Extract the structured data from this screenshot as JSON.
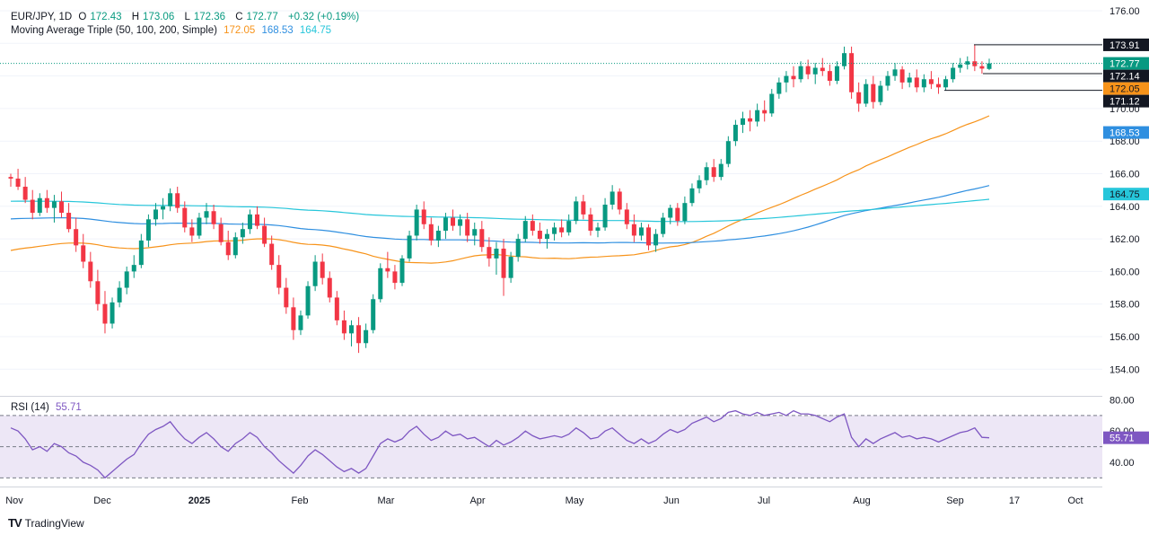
{
  "header": {
    "symbol": "EUR/JPY, 1D",
    "o_label": "O",
    "o": "172.43",
    "h_label": "H",
    "h": "173.06",
    "l_label": "L",
    "l": "172.36",
    "c_label": "C",
    "c": "172.77",
    "change": "+0.32 (+0.19%)",
    "ma_name": "Moving Average Triple (50, 100, 200, Simple)",
    "ma50": "172.05",
    "ma100": "168.53",
    "ma200": "164.75"
  },
  "rsi_header": {
    "name": "RSI (14)",
    "value": "55.71"
  },
  "brand": "TradingView",
  "colors": {
    "up": "#089981",
    "down": "#f23645",
    "ma50": "#f7931a",
    "ma100": "#2f8fe0",
    "ma200": "#26c6da",
    "rsi": "#7e57c2",
    "rsi_band": "#ede7f6",
    "last_price_tag": "#089981",
    "ma50_tag": "#f7931a",
    "ma100_tag": "#2f8fe0",
    "ma200_tag": "#26c6da",
    "level_tag": "#131722"
  },
  "chart_data": {
    "type": "candlestick",
    "x_ticks": [
      "Nov",
      "Dec",
      "2025",
      "Feb",
      "Mar",
      "Apr",
      "May",
      "Jun",
      "Jul",
      "Aug",
      "Sep",
      "17",
      "Oct"
    ],
    "price_axis": {
      "ylim": [
        153,
        176
      ],
      "ticks": [
        "176.00",
        "174.00",
        "172.00",
        "170.00",
        "168.00",
        "166.00",
        "164.00",
        "162.00",
        "160.00",
        "158.00",
        "156.00",
        "154.00"
      ]
    },
    "price_tags": [
      {
        "label": "173.91",
        "kind": "level"
      },
      {
        "label": "172.77",
        "kind": "last_price"
      },
      {
        "label": "172.14",
        "kind": "level"
      },
      {
        "label": "172.05",
        "kind": "ma50"
      },
      {
        "label": "171.12",
        "kind": "level"
      },
      {
        "label": "168.53",
        "kind": "ma100"
      },
      {
        "label": "164.75",
        "kind": "ma200"
      }
    ],
    "horizontal_levels": [
      173.91,
      172.14,
      171.12
    ],
    "last_price": 172.77,
    "candles_approx": [
      [
        165.8,
        166.0,
        165.2,
        165.7
      ],
      [
        165.7,
        166.3,
        165.0,
        165.2
      ],
      [
        165.2,
        165.8,
        164.2,
        164.4
      ],
      [
        164.4,
        165.0,
        163.2,
        163.6
      ],
      [
        163.6,
        164.8,
        163.4,
        164.5
      ],
      [
        164.5,
        165.0,
        163.6,
        163.9
      ],
      [
        163.9,
        164.7,
        163.0,
        164.3
      ],
      [
        164.3,
        164.9,
        163.3,
        163.6
      ],
      [
        163.6,
        164.2,
        162.4,
        162.6
      ],
      [
        162.6,
        163.3,
        161.2,
        161.6
      ],
      [
        161.6,
        162.3,
        160.2,
        160.6
      ],
      [
        160.6,
        161.2,
        159.0,
        159.4
      ],
      [
        159.4,
        160.1,
        157.6,
        158.0
      ],
      [
        158.0,
        158.8,
        156.2,
        156.8
      ],
      [
        156.8,
        158.4,
        156.5,
        158.1
      ],
      [
        158.1,
        159.4,
        157.8,
        159.0
      ],
      [
        159.0,
        160.3,
        158.6,
        160.0
      ],
      [
        160.0,
        161.0,
        159.6,
        160.4
      ],
      [
        160.4,
        162.3,
        160.2,
        161.9
      ],
      [
        161.9,
        163.5,
        161.5,
        163.2
      ],
      [
        163.2,
        164.2,
        162.8,
        163.8
      ],
      [
        163.8,
        164.5,
        163.2,
        164.0
      ],
      [
        164.0,
        165.1,
        163.7,
        164.8
      ],
      [
        164.8,
        165.2,
        163.6,
        163.9
      ],
      [
        163.9,
        164.3,
        162.4,
        162.7
      ],
      [
        162.7,
        163.2,
        161.8,
        162.2
      ],
      [
        162.2,
        163.6,
        162.0,
        163.3
      ],
      [
        163.3,
        164.2,
        162.9,
        163.7
      ],
      [
        163.7,
        164.1,
        162.6,
        162.9
      ],
      [
        162.9,
        163.3,
        161.6,
        161.8
      ],
      [
        161.8,
        162.5,
        160.7,
        161.0
      ],
      [
        161.0,
        162.4,
        160.8,
        162.1
      ],
      [
        162.1,
        163.0,
        161.7,
        162.6
      ],
      [
        162.6,
        163.8,
        162.3,
        163.5
      ],
      [
        163.5,
        164.0,
        162.6,
        162.8
      ],
      [
        162.8,
        163.3,
        161.5,
        161.7
      ],
      [
        161.7,
        162.2,
        160.1,
        160.4
      ],
      [
        160.4,
        161.0,
        158.6,
        159.0
      ],
      [
        159.0,
        159.6,
        157.4,
        157.8
      ],
      [
        157.8,
        158.4,
        155.8,
        156.4
      ],
      [
        156.4,
        157.6,
        156.1,
        157.3
      ],
      [
        157.3,
        159.4,
        157.1,
        159.1
      ],
      [
        159.1,
        161.0,
        158.8,
        160.6
      ],
      [
        160.6,
        161.1,
        159.2,
        159.6
      ],
      [
        159.6,
        160.0,
        158.1,
        158.4
      ],
      [
        158.4,
        158.8,
        156.7,
        157.0
      ],
      [
        157.0,
        157.6,
        155.8,
        156.2
      ],
      [
        156.2,
        157.0,
        155.4,
        156.7
      ],
      [
        156.7,
        157.2,
        155.0,
        155.6
      ],
      [
        155.6,
        156.8,
        155.3,
        156.4
      ],
      [
        156.4,
        158.6,
        156.2,
        158.3
      ],
      [
        158.3,
        160.5,
        158.1,
        160.2
      ],
      [
        160.2,
        161.2,
        159.6,
        160.0
      ],
      [
        160.0,
        160.4,
        158.9,
        159.3
      ],
      [
        159.3,
        161.0,
        159.1,
        160.8
      ],
      [
        160.8,
        162.5,
        160.6,
        162.2
      ],
      [
        162.2,
        164.1,
        161.9,
        163.8
      ],
      [
        163.8,
        164.3,
        162.6,
        162.9
      ],
      [
        162.9,
        163.3,
        161.6,
        161.9
      ],
      [
        161.9,
        162.8,
        161.5,
        162.5
      ],
      [
        162.5,
        163.6,
        162.0,
        163.3
      ],
      [
        163.3,
        163.8,
        162.5,
        162.8
      ],
      [
        162.8,
        163.5,
        162.2,
        163.2
      ],
      [
        163.2,
        163.6,
        161.8,
        162.2
      ],
      [
        162.2,
        163.0,
        161.6,
        162.6
      ],
      [
        162.6,
        163.1,
        161.2,
        161.5
      ],
      [
        161.5,
        162.1,
        160.3,
        160.8
      ],
      [
        160.8,
        161.8,
        159.8,
        161.4
      ],
      [
        161.4,
        162.0,
        158.5,
        159.6
      ],
      [
        159.6,
        161.2,
        159.3,
        160.9
      ],
      [
        160.9,
        162.3,
        160.6,
        162.0
      ],
      [
        162.0,
        163.4,
        161.8,
        163.1
      ],
      [
        163.1,
        163.5,
        162.2,
        162.5
      ],
      [
        162.5,
        163.0,
        161.7,
        162.0
      ],
      [
        162.0,
        162.6,
        161.4,
        162.3
      ],
      [
        162.3,
        163.0,
        161.9,
        162.7
      ],
      [
        162.7,
        163.2,
        162.1,
        162.4
      ],
      [
        162.4,
        163.5,
        162.2,
        163.1
      ],
      [
        163.1,
        164.6,
        162.9,
        164.3
      ],
      [
        164.3,
        164.7,
        163.2,
        163.5
      ],
      [
        163.5,
        163.9,
        162.2,
        162.5
      ],
      [
        162.5,
        163.0,
        162.1,
        162.7
      ],
      [
        162.7,
        164.5,
        162.5,
        164.1
      ],
      [
        164.1,
        165.3,
        163.8,
        164.9
      ],
      [
        164.9,
        165.1,
        163.5,
        163.8
      ],
      [
        163.8,
        164.2,
        162.6,
        162.9
      ],
      [
        162.9,
        163.5,
        161.8,
        162.2
      ],
      [
        162.2,
        163.0,
        161.9,
        162.7
      ],
      [
        162.7,
        162.9,
        161.3,
        161.6
      ],
      [
        161.6,
        162.6,
        161.2,
        162.3
      ],
      [
        162.3,
        163.6,
        162.1,
        163.3
      ],
      [
        163.3,
        164.1,
        162.9,
        163.9
      ],
      [
        163.9,
        164.2,
        162.8,
        163.1
      ],
      [
        163.1,
        164.6,
        162.9,
        164.2
      ],
      [
        164.2,
        165.4,
        164.0,
        165.1
      ],
      [
        165.1,
        165.9,
        164.8,
        165.6
      ],
      [
        165.6,
        166.7,
        165.3,
        166.4
      ],
      [
        166.4,
        166.9,
        165.5,
        165.8
      ],
      [
        165.8,
        166.9,
        165.6,
        166.6
      ],
      [
        166.6,
        168.3,
        166.4,
        168.0
      ],
      [
        168.0,
        169.3,
        167.7,
        169.0
      ],
      [
        169.0,
        169.8,
        168.5,
        169.4
      ],
      [
        169.4,
        169.9,
        168.6,
        169.2
      ],
      [
        169.2,
        170.3,
        168.9,
        169.9
      ],
      [
        169.9,
        170.5,
        169.2,
        169.7
      ],
      [
        169.7,
        171.2,
        169.5,
        170.9
      ],
      [
        170.9,
        171.9,
        170.6,
        171.6
      ],
      [
        171.6,
        172.3,
        171.0,
        172.0
      ],
      [
        172.0,
        172.6,
        171.3,
        171.8
      ],
      [
        171.8,
        172.9,
        171.6,
        172.6
      ],
      [
        172.6,
        173.0,
        171.8,
        172.1
      ],
      [
        172.1,
        172.8,
        171.5,
        172.5
      ],
      [
        172.5,
        173.1,
        172.0,
        172.3
      ],
      [
        172.3,
        172.7,
        171.4,
        171.7
      ],
      [
        171.7,
        172.9,
        171.5,
        172.6
      ],
      [
        172.6,
        173.8,
        172.4,
        173.4
      ],
      [
        173.4,
        173.8,
        170.6,
        171.0
      ],
      [
        171.0,
        171.6,
        169.8,
        170.3
      ],
      [
        170.3,
        171.8,
        170.1,
        171.5
      ],
      [
        171.5,
        172.0,
        170.0,
        170.4
      ],
      [
        170.4,
        171.7,
        170.2,
        171.4
      ],
      [
        171.4,
        172.3,
        171.1,
        172.0
      ],
      [
        172.0,
        172.8,
        171.7,
        172.4
      ],
      [
        172.4,
        172.6,
        171.2,
        171.6
      ],
      [
        171.6,
        172.2,
        171.3,
        171.9
      ],
      [
        171.9,
        172.4,
        171.0,
        171.3
      ],
      [
        171.3,
        172.1,
        171.0,
        171.8
      ],
      [
        171.8,
        172.3,
        171.2,
        171.5
      ],
      [
        171.5,
        171.9,
        170.9,
        171.3
      ],
      [
        171.3,
        172.0,
        171.1,
        171.8
      ],
      [
        171.8,
        172.8,
        171.6,
        172.5
      ],
      [
        172.5,
        173.1,
        172.2,
        172.7
      ],
      [
        172.7,
        173.2,
        172.4,
        172.9
      ],
      [
        172.9,
        173.91,
        172.3,
        172.6
      ],
      [
        172.6,
        172.9,
        172.14,
        172.45
      ],
      [
        172.43,
        173.06,
        172.36,
        172.77
      ]
    ],
    "rsi": {
      "name": "RSI (14)",
      "ylim": [
        25,
        82
      ],
      "ticks": [
        "80.00",
        "60.00",
        "40.00"
      ],
      "band": [
        30,
        70
      ],
      "last": 55.71,
      "values_approx": [
        62,
        60,
        55,
        48,
        50,
        47,
        52,
        50,
        46,
        44,
        40,
        38,
        35,
        30,
        34,
        38,
        42,
        45,
        52,
        58,
        61,
        63,
        66,
        60,
        55,
        52,
        56,
        59,
        55,
        50,
        47,
        52,
        55,
        59,
        56,
        50,
        46,
        41,
        37,
        33,
        38,
        44,
        48,
        45,
        41,
        37,
        34,
        36,
        33,
        36,
        44,
        52,
        55,
        53,
        55,
        60,
        63,
        58,
        54,
        56,
        60,
        57,
        58,
        55,
        56,
        53,
        50,
        54,
        51,
        53,
        56,
        60,
        57,
        55,
        56,
        57,
        56,
        58,
        62,
        59,
        55,
        56,
        60,
        62,
        58,
        54,
        52,
        55,
        52,
        54,
        58,
        61,
        59,
        61,
        65,
        67,
        69,
        66,
        68,
        72,
        73,
        71,
        70,
        72,
        70,
        71,
        72,
        70,
        73,
        71,
        71,
        70,
        68,
        66,
        69,
        71,
        56,
        50,
        55,
        52,
        55,
        57,
        59,
        56,
        57,
        55,
        56,
        55,
        53,
        55,
        57,
        59,
        60,
        62,
        56,
        55.71
      ]
    }
  }
}
